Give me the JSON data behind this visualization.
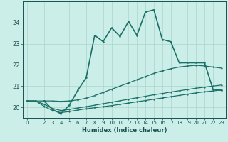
{
  "xlabel": "Humidex (Indice chaleur)",
  "bg_color": "#cceee8",
  "grid_color": "#aad4cc",
  "line_color": "#1a7068",
  "xlim": [
    -0.5,
    23.5
  ],
  "ylim": [
    19.5,
    25.0
  ],
  "yticks": [
    20,
    21,
    22,
    23,
    24
  ],
  "xticks": [
    0,
    1,
    2,
    3,
    4,
    5,
    6,
    7,
    8,
    9,
    10,
    11,
    12,
    13,
    14,
    15,
    16,
    17,
    18,
    19,
    20,
    21,
    22,
    23
  ],
  "series": [
    {
      "x": [
        0,
        1,
        2,
        3,
        4,
        5,
        6,
        7,
        8,
        9,
        10,
        11,
        12,
        13,
        14,
        15,
        16,
        17,
        18,
        19,
        20,
        21,
        22,
        23
      ],
      "y": [
        20.3,
        20.3,
        20.05,
        19.85,
        19.75,
        19.8,
        19.87,
        19.93,
        19.98,
        20.03,
        20.08,
        20.14,
        20.2,
        20.26,
        20.32,
        20.38,
        20.44,
        20.5,
        20.56,
        20.62,
        20.68,
        20.73,
        20.77,
        20.82
      ],
      "lw": 0.9,
      "ms": 2.5
    },
    {
      "x": [
        0,
        1,
        2,
        3,
        4,
        5,
        6,
        7,
        8,
        9,
        10,
        11,
        12,
        13,
        14,
        15,
        16,
        17,
        18,
        19,
        20,
        21,
        22,
        23
      ],
      "y": [
        20.3,
        20.3,
        20.15,
        19.95,
        19.85,
        19.9,
        19.97,
        20.03,
        20.1,
        20.17,
        20.24,
        20.31,
        20.38,
        20.45,
        20.52,
        20.59,
        20.65,
        20.72,
        20.78,
        20.84,
        20.9,
        20.95,
        21.0,
        21.05
      ],
      "lw": 0.9,
      "ms": 2.5
    },
    {
      "x": [
        0,
        1,
        2,
        3,
        4,
        5,
        6,
        7,
        8,
        9,
        10,
        11,
        12,
        13,
        14,
        15,
        16,
        17,
        18,
        19,
        20,
        21,
        22,
        23
      ],
      "y": [
        20.3,
        20.3,
        20.3,
        20.3,
        20.28,
        20.3,
        20.35,
        20.43,
        20.55,
        20.7,
        20.85,
        21.0,
        21.15,
        21.3,
        21.45,
        21.6,
        21.72,
        21.82,
        21.9,
        21.95,
        21.98,
        21.95,
        21.9,
        21.85
      ],
      "lw": 0.9,
      "ms": 2.5
    },
    {
      "x": [
        2,
        3,
        4,
        5,
        6,
        7,
        8,
        9,
        10,
        11,
        12,
        13,
        14,
        15,
        16,
        17,
        18,
        19,
        20,
        21,
        22,
        23
      ],
      "y": [
        20.3,
        19.9,
        19.7,
        20.1,
        20.8,
        21.4,
        23.4,
        23.1,
        23.75,
        23.35,
        24.05,
        23.4,
        24.5,
        24.6,
        23.2,
        23.1,
        22.1,
        22.1,
        22.1,
        22.1,
        20.85,
        20.8
      ],
      "lw": 1.2,
      "ms": 3.0
    }
  ]
}
